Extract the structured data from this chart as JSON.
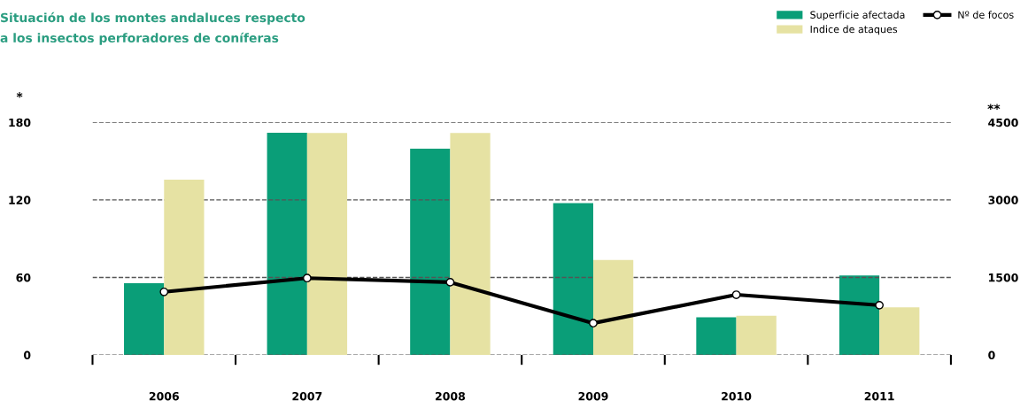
{
  "chart_data": {
    "type": "bar",
    "title": "Situación de los montes andaluces respecto\na los insectos perforadores de coníferas",
    "ylabel": "*",
    "y2label": "**",
    "categories": [
      "2006",
      "2007",
      "2008",
      "2009",
      "2010",
      "2011"
    ],
    "series": [
      {
        "name": "Superficie afectada",
        "color": "#0a9e78",
        "axis": "y2",
        "values": [
          1390,
          4300,
          3990,
          2940,
          730,
          1540
        ]
      },
      {
        "name": "Indice de ataques",
        "color": "#e6e2a3",
        "values": [
          135.6,
          171.8,
          171.8,
          73.5,
          30.3,
          36.8
        ]
      },
      {
        "name": "Nº de focos",
        "type": "line",
        "color": "#000000",
        "marker": "circle",
        "values": [
          48.8,
          59.5,
          56.3,
          24.6,
          46.6,
          38.5
        ]
      }
    ],
    "ylim": [
      0,
      180
    ],
    "yticks": [
      0,
      60,
      120,
      180
    ],
    "y2lim": [
      0,
      4500
    ],
    "y2ticks": [
      0,
      1500,
      3000,
      4500
    ],
    "grid": "y",
    "legend": "top right"
  }
}
